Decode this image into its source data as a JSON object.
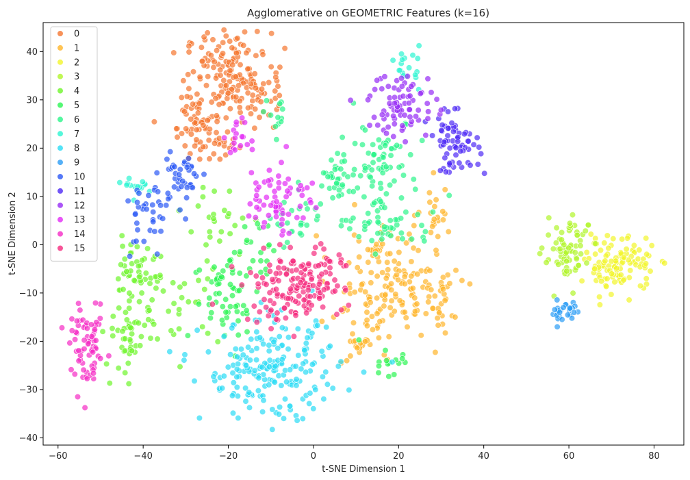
{
  "chart_data": {
    "type": "scatter",
    "title": "Agglomerative on GEOMETRIC Features (k=16)",
    "xlabel": "t-SNE Dimension 1",
    "ylabel": "t-SNE Dimension 2",
    "xlim": [
      -63.5,
      87
    ],
    "ylim": [
      -41.5,
      46
    ],
    "xticks": [
      "−60",
      "−40",
      "−20",
      "0",
      "20",
      "40",
      "60",
      "80"
    ],
    "xtick_values": [
      -60,
      -40,
      -20,
      0,
      20,
      40,
      60,
      80
    ],
    "yticks": [
      "−40",
      "−30",
      "−20",
      "−10",
      "0",
      "10",
      "20",
      "30",
      "40"
    ],
    "ytick_values": [
      -40,
      -30,
      -20,
      -10,
      0,
      10,
      20,
      30,
      40
    ],
    "grid": false,
    "legend_position": "top-left",
    "point_alpha": 0.7,
    "series": [
      {
        "name": "0",
        "color": "#f5762f",
        "blobs": [
          {
            "c": [
              -20,
              36
            ],
            "s": [
              5,
              4
            ],
            "n": 120
          },
          {
            "c": [
              -26,
              26
            ],
            "s": [
              3.5,
              4
            ],
            "n": 70
          },
          {
            "c": [
              -14,
              32
            ],
            "s": [
              3,
              4
            ],
            "n": 45
          },
          {
            "c": [
              -22,
              21
            ],
            "s": [
              2,
              2
            ],
            "n": 15
          }
        ]
      },
      {
        "name": "1",
        "color": "#ffb52b",
        "blobs": [
          {
            "c": [
              17,
              -8
            ],
            "s": [
              6,
              6
            ],
            "n": 150
          },
          {
            "c": [
              28,
              -12
            ],
            "s": [
              3,
              4
            ],
            "n": 35
          },
          {
            "c": [
              29,
              6
            ],
            "s": [
              2,
              3
            ],
            "n": 20
          },
          {
            "c": [
              10,
              -20
            ],
            "s": [
              3,
              3
            ],
            "n": 20
          }
        ]
      },
      {
        "name": "2",
        "color": "#f2f52b",
        "blobs": [
          {
            "c": [
              72,
              -4
            ],
            "s": [
              4,
              2.8
            ],
            "n": 110
          }
        ]
      },
      {
        "name": "3",
        "color": "#b0f52b",
        "blobs": [
          {
            "c": [
              59,
              -3
            ],
            "s": [
              2.5,
              3
            ],
            "n": 55
          },
          {
            "c": [
              62,
              2
            ],
            "s": [
              2,
              1.5
            ],
            "n": 15
          }
        ]
      },
      {
        "name": "4",
        "color": "#6ef52b",
        "blobs": [
          {
            "c": [
              -42,
              -6
            ],
            "s": [
              3,
              3
            ],
            "n": 50
          },
          {
            "c": [
              -43,
              -19
            ],
            "s": [
              3,
              4
            ],
            "n": 50
          },
          {
            "c": [
              -30,
              -12
            ],
            "s": [
              4,
              4
            ],
            "n": 25
          },
          {
            "c": [
              -22,
              4
            ],
            "s": [
              4,
              4
            ],
            "n": 25
          }
        ]
      },
      {
        "name": "5",
        "color": "#2bf552",
        "blobs": [
          {
            "c": [
              -20,
              -10
            ],
            "s": [
              4,
              5
            ],
            "n": 60
          },
          {
            "c": [
              -12,
              0
            ],
            "s": [
              3,
              3
            ],
            "n": 20
          },
          {
            "c": [
              17,
              -24
            ],
            "s": [
              3,
              2
            ],
            "n": 15
          }
        ]
      },
      {
        "name": "6",
        "color": "#2bf58a",
        "blobs": [
          {
            "c": [
              15,
              18
            ],
            "s": [
              5,
              4
            ],
            "n": 70
          },
          {
            "c": [
              17,
              5
            ],
            "s": [
              6,
              3
            ],
            "n": 60
          },
          {
            "c": [
              5,
              13
            ],
            "s": [
              2,
              2
            ],
            "n": 25
          },
          {
            "c": [
              -3,
              5
            ],
            "s": [
              3,
              3
            ],
            "n": 25
          },
          {
            "c": [
              -9,
              26
            ],
            "s": [
              2,
              2
            ],
            "n": 12
          }
        ]
      },
      {
        "name": "7",
        "color": "#2bf5d1",
        "blobs": [
          {
            "c": [
              -41,
              12
            ],
            "s": [
              1.5,
              1
            ],
            "n": 15
          },
          {
            "c": [
              22,
              37
            ],
            "s": [
              1.5,
              2
            ],
            "n": 18
          }
        ]
      },
      {
        "name": "8",
        "color": "#2bdcf5",
        "blobs": [
          {
            "c": [
              -10,
              -26
            ],
            "s": [
              8,
              5
            ],
            "n": 200
          }
        ]
      },
      {
        "name": "9",
        "color": "#2b9cf5",
        "blobs": [
          {
            "c": [
              59,
              -14
            ],
            "s": [
              2,
              1.5
            ],
            "n": 28
          }
        ]
      },
      {
        "name": "10",
        "color": "#2b58f5",
        "blobs": [
          {
            "c": [
              -31,
              14
            ],
            "s": [
              2.5,
              3
            ],
            "n": 40
          },
          {
            "c": [
              -39,
              5
            ],
            "s": [
              2.5,
              4
            ],
            "n": 35
          }
        ]
      },
      {
        "name": "11",
        "color": "#4f2bf5",
        "blobs": [
          {
            "c": [
              33,
              21
            ],
            "s": [
              3,
              3
            ],
            "n": 70
          }
        ]
      },
      {
        "name": "12",
        "color": "#962bf5",
        "blobs": [
          {
            "c": [
              21,
              29
            ],
            "s": [
              4,
              3.5
            ],
            "n": 80
          }
        ]
      },
      {
        "name": "13",
        "color": "#e22bf5",
        "blobs": [
          {
            "c": [
              -8,
              10
            ],
            "s": [
              4,
              4
            ],
            "n": 65
          },
          {
            "c": [
              -17,
              22
            ],
            "s": [
              2,
              2
            ],
            "n": 18
          }
        ]
      },
      {
        "name": "14",
        "color": "#f52bc5",
        "blobs": [
          {
            "c": [
              -53,
              -22
            ],
            "s": [
              2,
              4
            ],
            "n": 70
          }
        ]
      },
      {
        "name": "15",
        "color": "#f52b7e",
        "blobs": [
          {
            "c": [
              -5,
              -9
            ],
            "s": [
              6,
              3.5
            ],
            "n": 140
          },
          {
            "c": [
              3,
              -5
            ],
            "s": [
              2.5,
              3
            ],
            "n": 25
          }
        ]
      }
    ]
  }
}
